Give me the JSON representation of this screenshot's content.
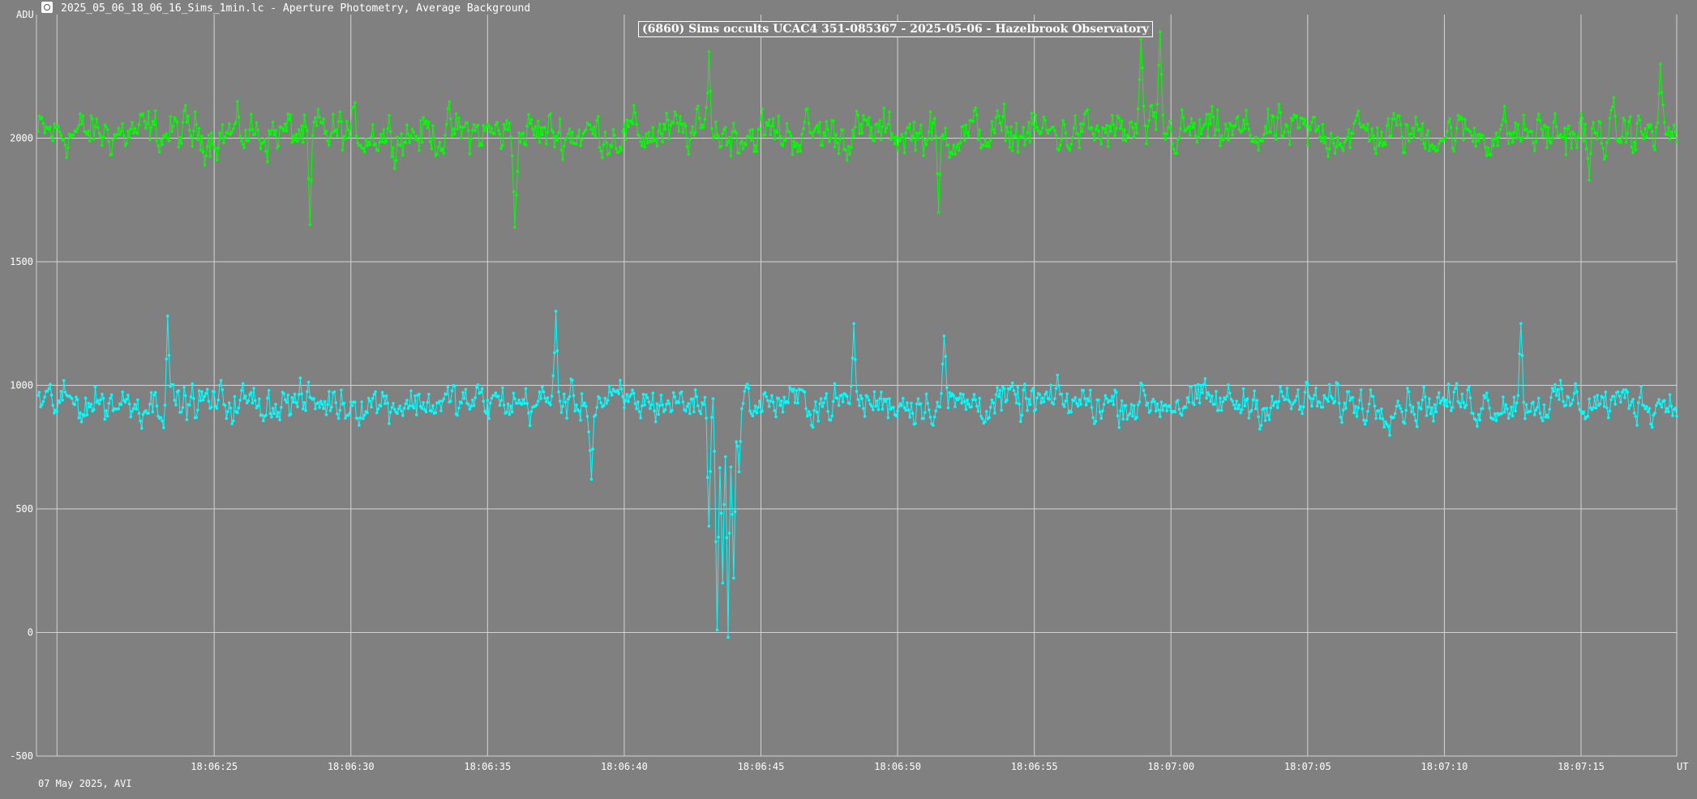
{
  "window": {
    "title": "2025_05_06_18_06_16_Sims_1min.lc - Aperture Photometry, Average Background",
    "icon": "app-icon"
  },
  "footer": "07 May 2025, AVI",
  "chart_data": {
    "type": "line",
    "title": "(6860) Sims occults UCAC4 351-085367 - 2025-05-06 - Hazelbrook Observatory",
    "ylabel": "ADU",
    "xlabel": "UT",
    "ylim": [
      -500,
      2500
    ],
    "xlim": [
      18.5,
      78.5
    ],
    "grid": true,
    "y_ticks": [
      -500,
      0,
      500,
      1000,
      1500,
      2000
    ],
    "y_tick_labels": [
      "-500",
      "0",
      "500",
      "1000",
      "1500",
      "2000"
    ],
    "x_ticks": [
      19.25,
      25,
      30,
      35,
      40,
      45,
      50,
      55,
      60,
      65,
      70,
      75
    ],
    "x_tick_labels": [
      "",
      "18:06:25",
      "18:06:30",
      "18:06:35",
      "18:06:40",
      "18:06:45",
      "18:06:50",
      "18:06:55",
      "18:07:00",
      "18:07:05",
      "18:07:10",
      "18:07:15"
    ],
    "series": [
      {
        "color": "#00ff00",
        "mean": 2020,
        "spread": 130,
        "features": [
          {
            "x": 28.5,
            "y": 1650
          },
          {
            "x": 36.0,
            "y": 1640
          },
          {
            "x": 43.1,
            "y": 2350
          },
          {
            "x": 51.5,
            "y": 1700
          },
          {
            "x": 58.9,
            "y": 2400
          },
          {
            "x": 59.6,
            "y": 2430
          },
          {
            "x": 75.3,
            "y": 1830
          },
          {
            "x": 77.9,
            "y": 2300
          }
        ]
      },
      {
        "color": "#00ffff",
        "mean": 930,
        "spread": 110,
        "features": [
          {
            "x": 23.3,
            "y": 1280
          },
          {
            "x": 37.5,
            "y": 1300
          },
          {
            "x": 38.8,
            "y": 620
          },
          {
            "x": 43.1,
            "y": 430
          },
          {
            "x": 43.4,
            "y": 10
          },
          {
            "x": 43.6,
            "y": 200
          },
          {
            "x": 43.8,
            "y": -20
          },
          {
            "x": 44.0,
            "y": 220
          },
          {
            "x": 44.2,
            "y": 650
          },
          {
            "x": 48.4,
            "y": 1250
          },
          {
            "x": 51.7,
            "y": 1200
          },
          {
            "x": 72.8,
            "y": 1250
          }
        ]
      }
    ]
  }
}
